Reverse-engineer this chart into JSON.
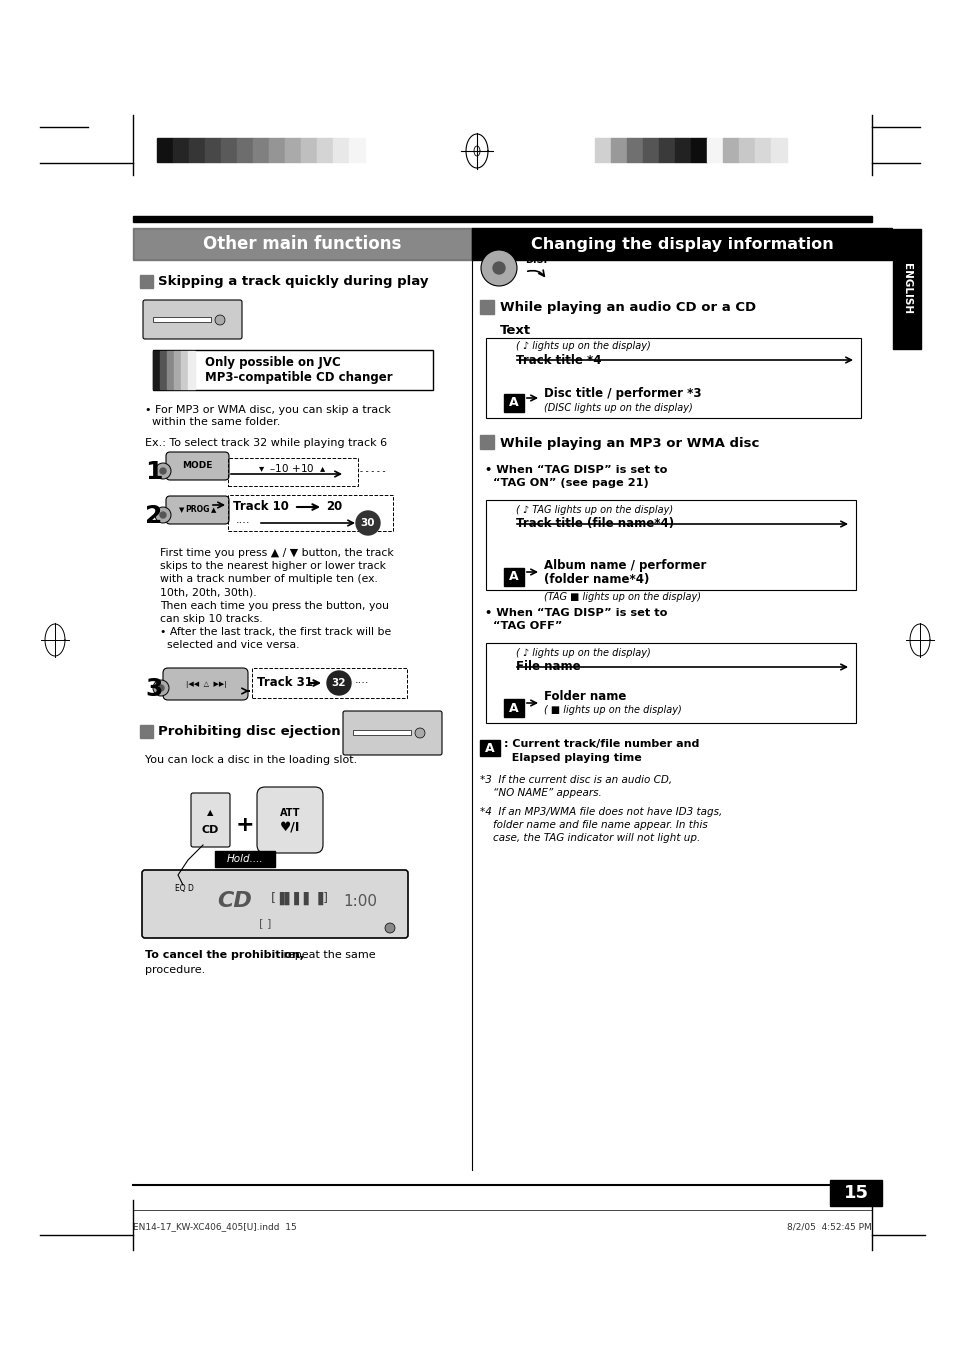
{
  "page_bg": "#ffffff",
  "page_width": 9.54,
  "page_height": 13.51,
  "dpi": 100,
  "left_section_title": "Other main functions",
  "left_section_title_bg": "#555555",
  "left_section_title_color": "#ffffff",
  "right_section_title": "Changing the display information",
  "right_section_title_bg": "#000000",
  "right_section_title_color": "#ffffff",
  "english_tab_bg": "#000000",
  "english_tab_color": "#ffffff",
  "english_tab_text": "ENGLISH",
  "section1_title": "Skipping a track quickly during play",
  "section1_note_bold": "Only possible on JVC\nMP3-compatible CD changer",
  "bullet1": "• For MP3 or WMA disc, you can skip a track\n  within the same folder.",
  "ex_text": "Ex.: To select track 32 while playing track 6",
  "step2_body": "First time you press ▲ / ▼ button, the track\nskips to the nearest higher or lower track\nwith a track number of multiple ten (ex.\n10th, 20th, 30th).\nThen each time you press the button, you\ncan skip 10 tracks.\n• After the last track, the first track will be\n  selected and vice versa.",
  "section2_title": "Prohibiting disc ejection",
  "section2_body": "You can lock a disc in the loading slot.",
  "section2_cancel_bold": "To cancel the prohibition,",
  "section2_cancel_rest": " repeat the same\nprocedure.",
  "right_section2_title": "While playing an audio CD or a CD\nText",
  "right_s2_disc": "Disc title / performer *3",
  "right_s2_disc_sub": "(DISC lights up on the display)",
  "right_s2_track": "Track title *4",
  "right_s2_track_sub": "( ♪ lights up on the display)",
  "right_section3_title": "While playing an MP3 or WMA disc",
  "right_s3_when1_bullet": "• When “TAG DISP” is set to\n  “TAG ON” (see page 21)",
  "right_s3_album": "Album name / performer\n(folder name*4)",
  "right_s3_album_sub": "(TAG ■ lights up on the display)",
  "right_s3_track": "Track title (file name*4)",
  "right_s3_track_sub": "( ♪ TAG lights up on the display)",
  "right_s3_when2_bullet": "• When “TAG DISP” is set to\n  “TAG OFF”",
  "right_s3_folder": "Folder name",
  "right_s3_folder_sub": "( ■ lights up on the display)",
  "right_s3_file": "File name",
  "right_s3_file_sub": "( ♪ lights up on the display)",
  "right_s3_note_box": "A",
  "right_s3_note_text": " : Current track/file number and\n   Elapsed playing time",
  "footnote3": "*3  If the current disc is an audio CD,\n    “NO NAME” appears.",
  "footnote4": "*4  If an MP3/WMA file does not have ID3 tags,\n    folder name and file name appear. In this\n    case, the TAG indicator will not light up.",
  "page_number": "15",
  "footer_left": "EN14-17_KW-XC406_405[U].indd  15",
  "footer_right": "8/2/05  4:52:45 PM"
}
